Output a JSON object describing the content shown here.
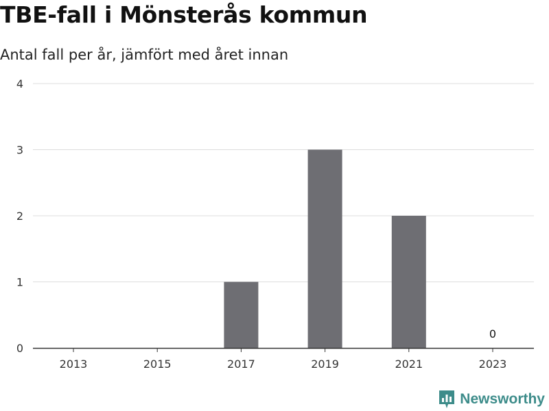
{
  "header": {
    "title": "TBE-fall i Mönsterås kommun",
    "subtitle": "Antal fall per år, jämfört med året innan"
  },
  "brand": {
    "name": "Newsworthy",
    "icon": "newsworthy-logo-icon",
    "color": "#3d8c8a"
  },
  "chart_data": {
    "type": "bar",
    "title": "TBE-fall i Mönsterås kommun",
    "subtitle": "Antal fall per år, jämfört med året innan",
    "xlabel": "",
    "ylabel": "",
    "categories": [
      "2013",
      "2014",
      "2015",
      "2016",
      "2017",
      "2018",
      "2019",
      "2020",
      "2021",
      "2022",
      "2023"
    ],
    "x_tick_labels": [
      "2013",
      "2015",
      "2017",
      "2019",
      "2021",
      "2023"
    ],
    "values": [
      0,
      0,
      0,
      0,
      1,
      0,
      3,
      0,
      2,
      0,
      0
    ],
    "ylim": [
      0,
      4
    ],
    "y_ticks": [
      0,
      1,
      2,
      3,
      4
    ],
    "grid": true,
    "bar_color": "#6e6e73",
    "annotations": [
      {
        "category": "2023",
        "text": "0"
      }
    ]
  }
}
